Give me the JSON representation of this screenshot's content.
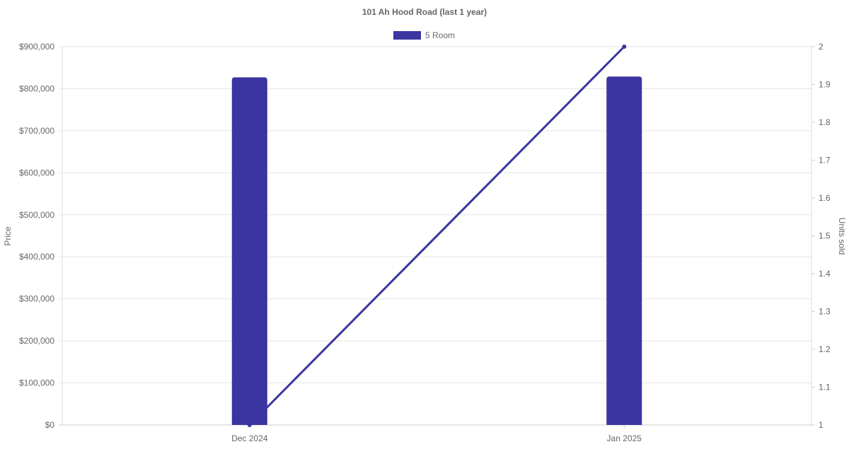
{
  "chart_data": {
    "type": "bar+line",
    "title": "101 Ah Hood Road (last 1 year)",
    "categories": [
      "Dec 2024",
      "Jan 2025"
    ],
    "legend": {
      "position": "top",
      "entries": [
        "5 Room"
      ]
    },
    "series": [
      {
        "name": "5 Room",
        "type": "bar",
        "axis": "left",
        "values": [
          827000,
          829000
        ],
        "color": "#3a35a0"
      },
      {
        "type": "line",
        "axis": "right",
        "values": [
          1,
          2
        ],
        "color": "#3a35a0"
      }
    ],
    "ylabel": "Price",
    "y2label": "Units sold",
    "ylim": [
      0,
      900000
    ],
    "y2lim": [
      1,
      2
    ],
    "yticks": [
      "$0",
      "$100,000",
      "$200,000",
      "$300,000",
      "$400,000",
      "$500,000",
      "$600,000",
      "$700,000",
      "$800,000",
      "$900,000"
    ],
    "y2ticks": [
      "1",
      "1.1",
      "1.2",
      "1.3",
      "1.4",
      "1.5",
      "1.6",
      "1.7",
      "1.8",
      "1.9",
      "2"
    ],
    "grid": true
  }
}
